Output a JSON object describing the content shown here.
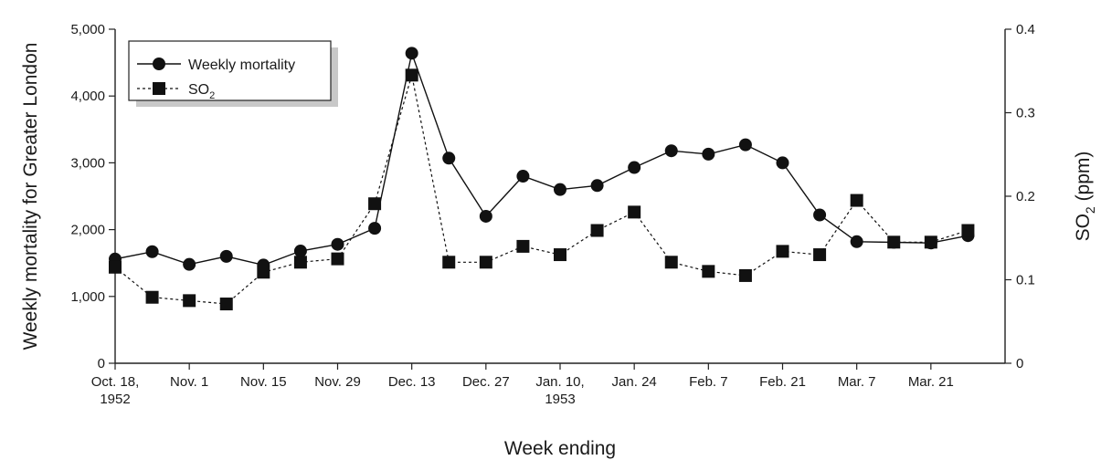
{
  "chart_data": {
    "type": "line",
    "xlabel": "Week ending",
    "ylabel": "Weekly mortality  for Greater London",
    "y2label": "SO",
    "y2label_sub": "2",
    "y2label_unit": " (ppm)",
    "ylim": [
      0,
      5000
    ],
    "y2lim": [
      0,
      0.4
    ],
    "x_tick_labels": [
      {
        "week": 0,
        "line1": "Oct. 18,",
        "line2": "1952"
      },
      {
        "week": 2,
        "line1": "Nov. 1",
        "line2": ""
      },
      {
        "week": 4,
        "line1": "Nov. 15",
        "line2": ""
      },
      {
        "week": 6,
        "line1": "Nov. 29",
        "line2": ""
      },
      {
        "week": 8,
        "line1": "Dec. 13",
        "line2": ""
      },
      {
        "week": 10,
        "line1": "Dec. 27",
        "line2": ""
      },
      {
        "week": 12,
        "line1": "Jan. 10,",
        "line2": "1953"
      },
      {
        "week": 14,
        "line1": "Jan. 24",
        "line2": ""
      },
      {
        "week": 16,
        "line1": "Feb. 7",
        "line2": ""
      },
      {
        "week": 18,
        "line1": "Feb. 21",
        "line2": ""
      },
      {
        "week": 20,
        "line1": "Mar. 7",
        "line2": ""
      },
      {
        "week": 22,
        "line1": "Mar. 21",
        "line2": ""
      }
    ],
    "y_tick_labels": [
      {
        "value": 0,
        "label": "0"
      },
      {
        "value": 1000,
        "label": "1,000"
      },
      {
        "value": 2000,
        "label": "2,000"
      },
      {
        "value": 3000,
        "label": "3,000"
      },
      {
        "value": 4000,
        "label": "4,000"
      },
      {
        "value": 5000,
        "label": "5,000"
      }
    ],
    "y2_tick_labels": [
      {
        "value": 0,
        "label": "0"
      },
      {
        "value": 0.1,
        "label": "0.1"
      },
      {
        "value": 0.2,
        "label": "0.2"
      },
      {
        "value": 0.3,
        "label": "0.3"
      },
      {
        "value": 0.4,
        "label": "0.4"
      }
    ],
    "series": [
      {
        "name": "Weekly mortality",
        "axis": "left",
        "marker": "circle",
        "line": "solid",
        "x": [
          0,
          1,
          2,
          3,
          4,
          5,
          6,
          7,
          8,
          9,
          10,
          11,
          12,
          13,
          14,
          15,
          16,
          17,
          18,
          19,
          20,
          21,
          22,
          23
        ],
        "values": [
          1560,
          1670,
          1480,
          1600,
          1470,
          1680,
          1780,
          2020,
          4640,
          3070,
          2200,
          2800,
          2600,
          2660,
          2930,
          3180,
          3130,
          3270,
          3000,
          2220,
          1820,
          1810,
          1800,
          1910
        ]
      },
      {
        "name": "SO",
        "name_sub": "2",
        "axis": "right",
        "marker": "square",
        "line": "dashed",
        "x": [
          0,
          1,
          2,
          3,
          4,
          5,
          6,
          7,
          8,
          9,
          10,
          11,
          12,
          13,
          14,
          15,
          16,
          17,
          18,
          19,
          20,
          21,
          22,
          23
        ],
        "values": [
          0.115,
          0.079,
          0.075,
          0.071,
          0.109,
          0.121,
          0.125,
          0.191,
          0.345,
          0.121,
          0.121,
          0.14,
          0.13,
          0.159,
          0.181,
          0.121,
          0.11,
          0.105,
          0.134,
          0.13,
          0.195,
          0.145,
          0.145,
          0.159
        ]
      }
    ],
    "legend": "top-left",
    "grid": false
  }
}
